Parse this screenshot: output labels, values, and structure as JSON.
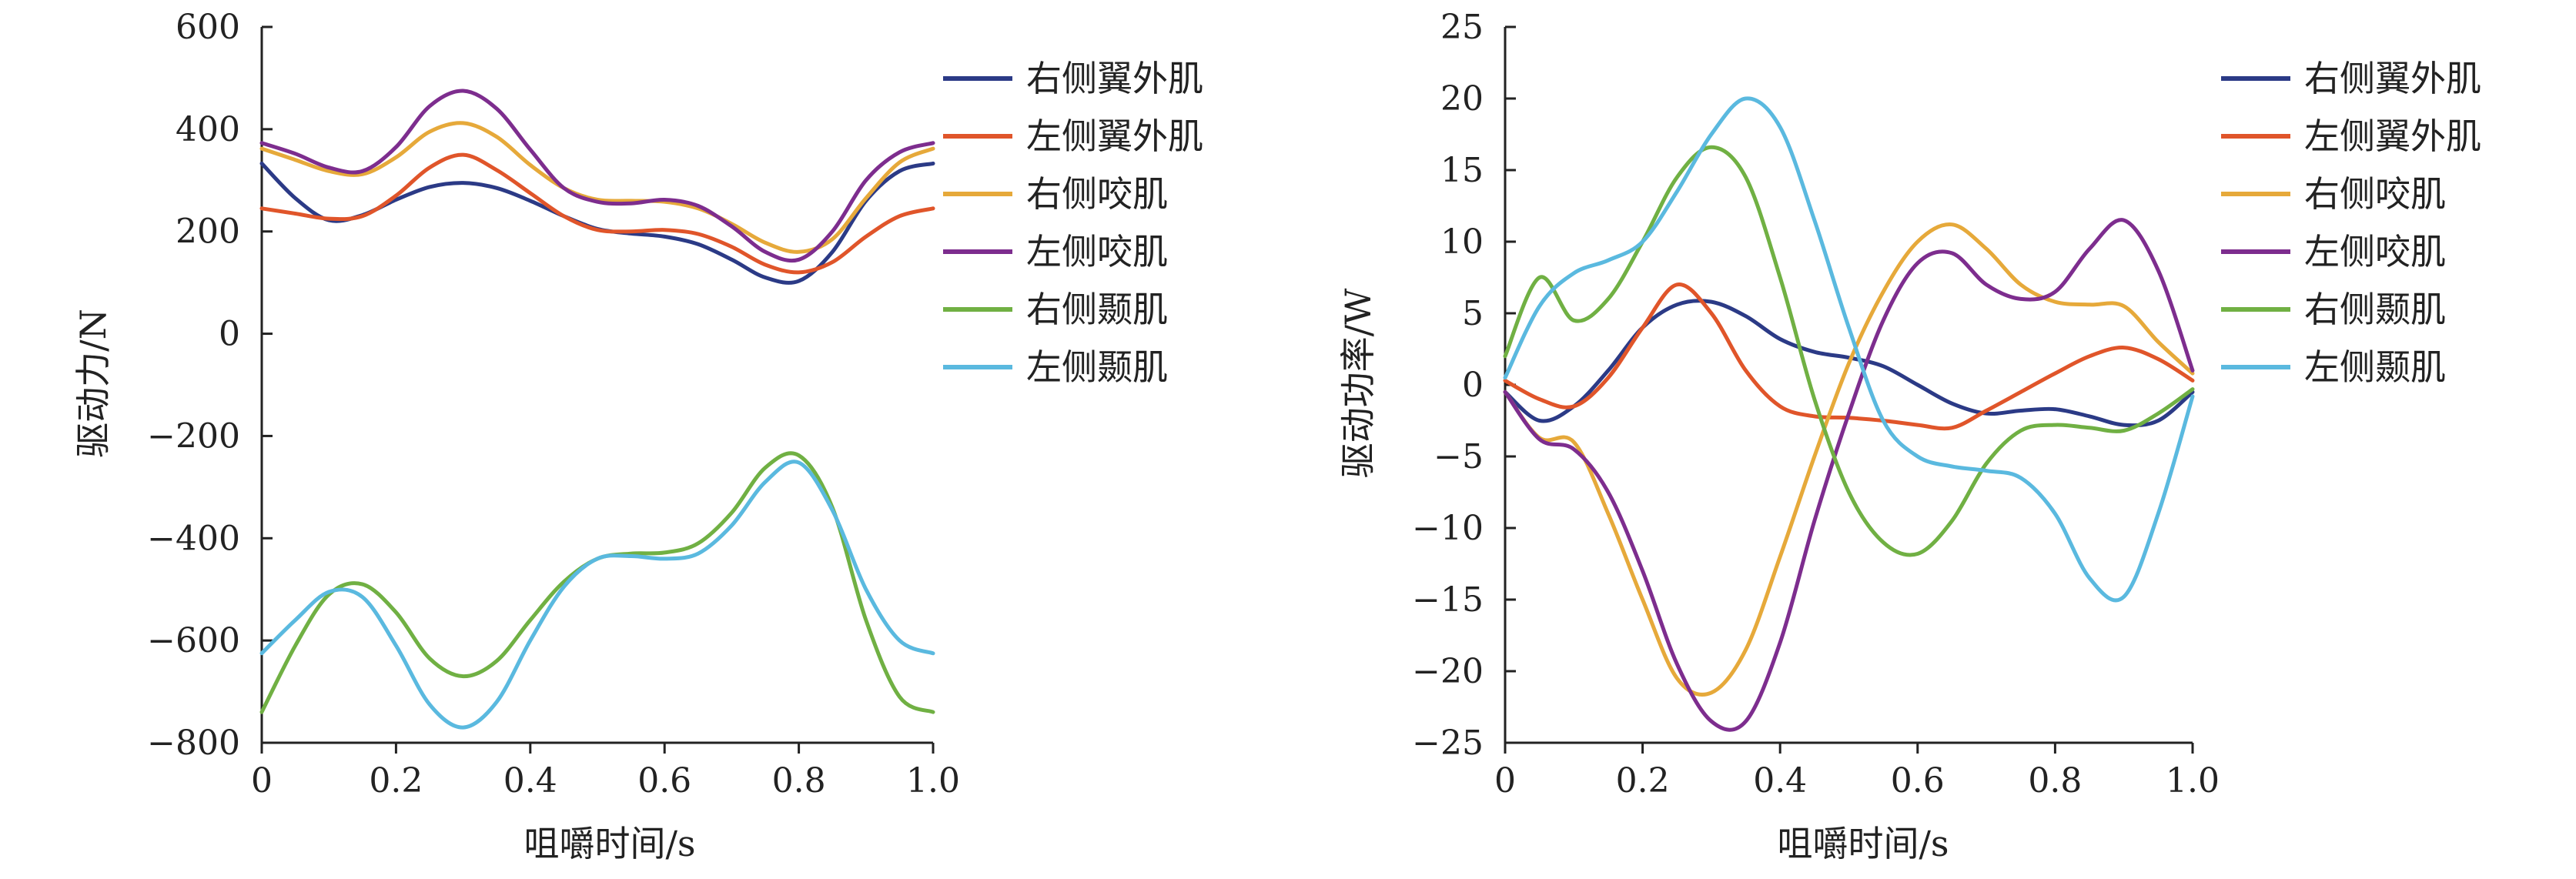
{
  "chart_data": [
    {
      "type": "line",
      "title": "",
      "xlabel": "咀嚼时间/s",
      "ylabel": "驱动力/N",
      "xlim": [
        0,
        1.0
      ],
      "ylim": [
        -800,
        600
      ],
      "x_ticks": [
        0,
        0.2,
        0.4,
        0.6,
        0.8,
        1.0
      ],
      "x_tick_labels": [
        "0",
        "0.2",
        "0.4",
        "0.6",
        "0.8",
        "1.0"
      ],
      "y_ticks": [
        600,
        400,
        200,
        0,
        -200,
        -400,
        -600,
        -800
      ],
      "y_tick_labels": [
        "600",
        "400",
        "200",
        "0",
        "−200",
        "−400",
        "−600",
        "−800"
      ],
      "grid": false,
      "legend_position": "top-right",
      "x": [
        0,
        0.05,
        0.1,
        0.15,
        0.2,
        0.25,
        0.3,
        0.35,
        0.4,
        0.45,
        0.5,
        0.55,
        0.6,
        0.65,
        0.7,
        0.75,
        0.8,
        0.85,
        0.9,
        0.95,
        1.0
      ],
      "series": [
        {
          "name": "右侧翼外肌",
          "color": "#2b3a86",
          "values": [
            333,
            265,
            222,
            232,
            262,
            287,
            295,
            285,
            260,
            230,
            205,
            196,
            190,
            175,
            145,
            110,
            103,
            160,
            260,
            318,
            333
          ]
        },
        {
          "name": "左侧翼外肌",
          "color": "#e0552a",
          "values": [
            245,
            235,
            225,
            230,
            270,
            325,
            350,
            320,
            275,
            230,
            203,
            200,
            203,
            195,
            170,
            135,
            120,
            140,
            190,
            230,
            245
          ]
        },
        {
          "name": "右侧咬肌",
          "color": "#e6a93a",
          "values": [
            362,
            340,
            318,
            312,
            345,
            395,
            412,
            385,
            330,
            285,
            262,
            260,
            258,
            245,
            215,
            178,
            160,
            185,
            265,
            335,
            362
          ]
        },
        {
          "name": "左侧咬肌",
          "color": "#7d2d8e",
          "values": [
            373,
            352,
            325,
            318,
            365,
            445,
            475,
            440,
            360,
            285,
            258,
            255,
            262,
            250,
            210,
            160,
            145,
            200,
            300,
            355,
            373
          ]
        },
        {
          "name": "右侧颞肌",
          "color": "#70b043",
          "values": [
            -740,
            -610,
            -510,
            -490,
            -545,
            -635,
            -670,
            -640,
            -560,
            -485,
            -440,
            -430,
            -428,
            -410,
            -350,
            -262,
            -238,
            -340,
            -560,
            -710,
            -740
          ]
        },
        {
          "name": "左侧颞肌",
          "color": "#5ab9df",
          "values": [
            -625,
            -560,
            -505,
            -515,
            -610,
            -725,
            -770,
            -720,
            -600,
            -495,
            -440,
            -435,
            -440,
            -430,
            -375,
            -290,
            -252,
            -345,
            -500,
            -600,
            -625
          ]
        }
      ]
    },
    {
      "type": "line",
      "title": "",
      "xlabel": "咀嚼时间/s",
      "ylabel": "驱动功率/W",
      "xlim": [
        0,
        1.0
      ],
      "ylim": [
        -25,
        25
      ],
      "x_ticks": [
        0,
        0.2,
        0.4,
        0.6,
        0.8,
        1.0
      ],
      "x_tick_labels": [
        "0",
        "0.2",
        "0.4",
        "0.6",
        "0.8",
        "1.0"
      ],
      "y_ticks": [
        25,
        20,
        15,
        10,
        5,
        0,
        -5,
        -10,
        -15,
        -20,
        -25
      ],
      "y_tick_labels": [
        "25",
        "20",
        "15",
        "10",
        "5",
        "0",
        "−5",
        "−10",
        "−15",
        "−20",
        "−25"
      ],
      "grid": false,
      "legend_position": "top-right",
      "x": [
        0,
        0.05,
        0.1,
        0.15,
        0.2,
        0.25,
        0.3,
        0.35,
        0.4,
        0.45,
        0.5,
        0.55,
        0.6,
        0.65,
        0.7,
        0.75,
        0.8,
        0.85,
        0.9,
        0.95,
        1.0
      ],
      "series": [
        {
          "name": "右侧翼外肌",
          "color": "#2b3a86",
          "values": [
            -0.5,
            -2.5,
            -1.5,
            1.0,
            4.0,
            5.6,
            5.8,
            4.8,
            3.2,
            2.3,
            1.9,
            1.3,
            0.0,
            -1.3,
            -2.0,
            -1.8,
            -1.7,
            -2.2,
            -2.8,
            -2.5,
            -0.5
          ]
        },
        {
          "name": "左侧翼外肌",
          "color": "#e0552a",
          "values": [
            0.3,
            -1.0,
            -1.5,
            0.5,
            4.0,
            7.0,
            5.0,
            1.0,
            -1.5,
            -2.2,
            -2.3,
            -2.5,
            -2.8,
            -3.0,
            -1.8,
            -0.5,
            0.8,
            2.0,
            2.6,
            1.8,
            0.3
          ]
        },
        {
          "name": "右侧咬肌",
          "color": "#e6a93a",
          "values": [
            -0.5,
            -3.7,
            -4.0,
            -9.0,
            -15.0,
            -20.5,
            -21.5,
            -18.5,
            -12.0,
            -5.0,
            1.5,
            6.5,
            10.0,
            11.2,
            9.5,
            7.0,
            5.8,
            5.6,
            5.5,
            3.0,
            0.8
          ]
        },
        {
          "name": "左侧咬肌",
          "color": "#7d2d8e",
          "values": [
            -0.5,
            -3.8,
            -4.5,
            -7.5,
            -13.0,
            -19.5,
            -23.5,
            -23.5,
            -18.0,
            -9.5,
            -2.0,
            4.5,
            8.5,
            9.2,
            7.0,
            6.0,
            6.5,
            9.5,
            11.5,
            8.0,
            1.0
          ]
        },
        {
          "name": "右侧颞肌",
          "color": "#70b043",
          "values": [
            2.0,
            7.5,
            4.5,
            6.0,
            10.0,
            14.5,
            16.6,
            14.5,
            7.5,
            -1.0,
            -7.5,
            -11.0,
            -11.8,
            -9.5,
            -5.5,
            -3.2,
            -2.8,
            -3.0,
            -3.2,
            -2.0,
            -0.3
          ]
        },
        {
          "name": "左侧颞肌",
          "color": "#5ab9df",
          "values": [
            0.5,
            5.5,
            7.8,
            8.7,
            10.0,
            13.5,
            17.5,
            20.0,
            18.0,
            11.5,
            4.0,
            -2.5,
            -5.0,
            -5.7,
            -6.0,
            -6.5,
            -9.0,
            -13.5,
            -14.8,
            -9.0,
            -0.8
          ]
        }
      ]
    }
  ]
}
